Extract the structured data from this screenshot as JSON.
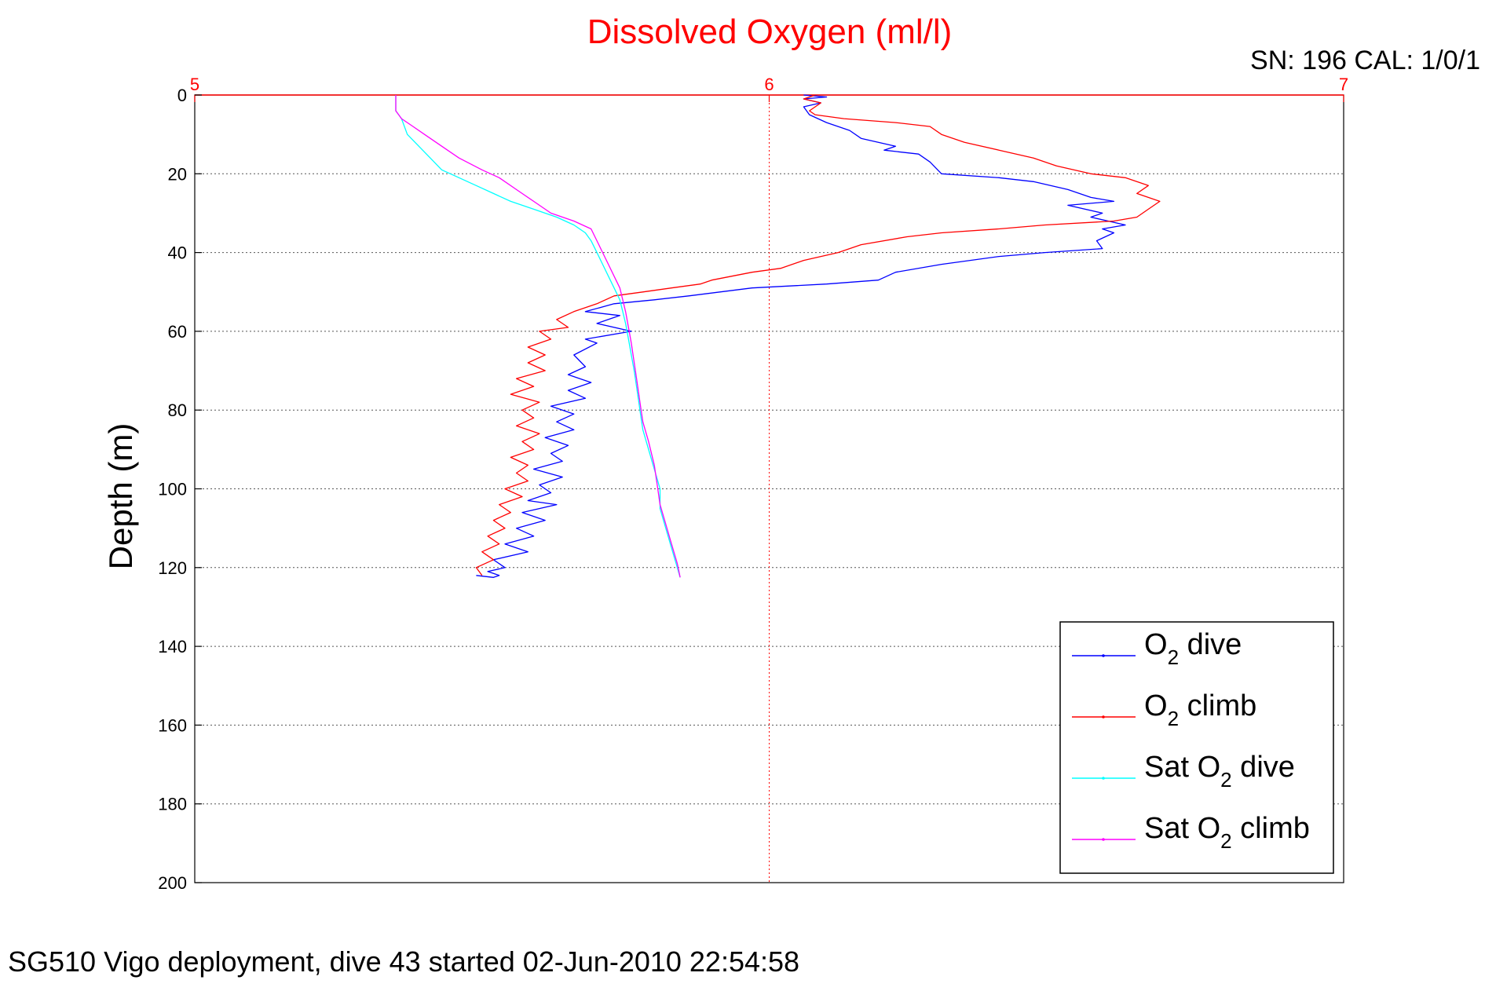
{
  "chart_data": {
    "type": "line",
    "title": "Dissolved Oxygen (ml/l)",
    "subtitle": "SN: 196  CAL: 1/0/1",
    "footer": "SG510 Vigo deployment, dive 43 started 02-Jun-2010 22:54:58",
    "xlabel": "",
    "ylabel": "Depth (m)",
    "xlim": [
      5,
      7
    ],
    "ylim": [
      0,
      200
    ],
    "y_reversed": true,
    "x_axis_position": "top",
    "x_ticks": [
      "5",
      "6",
      "7"
    ],
    "y_ticks": [
      "0",
      "20",
      "40",
      "60",
      "80",
      "100",
      "120",
      "140",
      "160",
      "180",
      "200"
    ],
    "grid": "dotted, both axes",
    "legend_position": "bottom-right",
    "colors": {
      "title": "#ff0000",
      "x_axis": "#ff0000",
      "y_axis": "#000000"
    },
    "series": [
      {
        "name": "O2 dive",
        "legend_main": "O",
        "legend_sub": "2",
        "legend_rest": " dive",
        "color": "#0000ff",
        "points": [
          [
            6.06,
            0
          ],
          [
            6.1,
            0.5
          ],
          [
            6.06,
            1
          ],
          [
            6.09,
            2
          ],
          [
            6.06,
            3
          ],
          [
            6.07,
            5
          ],
          [
            6.1,
            7
          ],
          [
            6.14,
            9
          ],
          [
            6.16,
            11
          ],
          [
            6.22,
            13
          ],
          [
            6.2,
            14
          ],
          [
            6.26,
            15
          ],
          [
            6.28,
            17
          ],
          [
            6.3,
            20
          ],
          [
            6.4,
            21
          ],
          [
            6.46,
            22
          ],
          [
            6.52,
            24
          ],
          [
            6.56,
            26
          ],
          [
            6.6,
            27
          ],
          [
            6.52,
            28
          ],
          [
            6.58,
            30
          ],
          [
            6.56,
            31
          ],
          [
            6.62,
            33
          ],
          [
            6.58,
            34
          ],
          [
            6.6,
            35
          ],
          [
            6.57,
            37
          ],
          [
            6.58,
            39
          ],
          [
            6.48,
            40
          ],
          [
            6.4,
            41
          ],
          [
            6.3,
            43
          ],
          [
            6.22,
            45
          ],
          [
            6.19,
            47
          ],
          [
            6.1,
            48
          ],
          [
            5.97,
            49
          ],
          [
            5.86,
            51
          ],
          [
            5.8,
            52
          ],
          [
            5.73,
            53
          ],
          [
            5.68,
            55
          ],
          [
            5.74,
            56
          ],
          [
            5.7,
            58
          ],
          [
            5.76,
            60
          ],
          [
            5.68,
            62
          ],
          [
            5.7,
            63
          ],
          [
            5.66,
            66
          ],
          [
            5.68,
            69
          ],
          [
            5.65,
            71
          ],
          [
            5.69,
            73
          ],
          [
            5.65,
            75
          ],
          [
            5.68,
            77
          ],
          [
            5.62,
            79
          ],
          [
            5.66,
            81
          ],
          [
            5.63,
            83
          ],
          [
            5.66,
            85
          ],
          [
            5.61,
            87
          ],
          [
            5.65,
            89
          ],
          [
            5.62,
            91
          ],
          [
            5.64,
            93
          ],
          [
            5.59,
            95
          ],
          [
            5.64,
            97
          ],
          [
            5.6,
            99
          ],
          [
            5.62,
            101
          ],
          [
            5.58,
            103
          ],
          [
            5.63,
            104
          ],
          [
            5.57,
            106
          ],
          [
            5.61,
            108
          ],
          [
            5.56,
            110
          ],
          [
            5.59,
            112
          ],
          [
            5.54,
            114
          ],
          [
            5.58,
            116
          ],
          [
            5.52,
            118
          ],
          [
            5.54,
            120
          ],
          [
            5.51,
            121
          ],
          [
            5.53,
            122
          ],
          [
            5.52,
            122.5
          ],
          [
            5.49,
            122
          ]
        ]
      },
      {
        "name": "O2 climb",
        "legend_main": "O",
        "legend_sub": "2",
        "legend_rest": " climb",
        "color": "#ff0000",
        "points": [
          [
            6.08,
            0
          ],
          [
            6.06,
            1
          ],
          [
            6.09,
            2
          ],
          [
            6.07,
            4
          ],
          [
            6.08,
            5
          ],
          [
            6.13,
            6
          ],
          [
            6.22,
            7
          ],
          [
            6.28,
            8
          ],
          [
            6.3,
            10
          ],
          [
            6.34,
            12
          ],
          [
            6.4,
            14
          ],
          [
            6.46,
            16
          ],
          [
            6.5,
            18
          ],
          [
            6.56,
            20
          ],
          [
            6.62,
            21
          ],
          [
            6.66,
            23
          ],
          [
            6.64,
            25
          ],
          [
            6.68,
            27
          ],
          [
            6.66,
            29
          ],
          [
            6.64,
            31
          ],
          [
            6.6,
            32
          ],
          [
            6.48,
            33
          ],
          [
            6.4,
            34
          ],
          [
            6.3,
            35
          ],
          [
            6.24,
            36
          ],
          [
            6.16,
            38
          ],
          [
            6.12,
            40
          ],
          [
            6.06,
            42
          ],
          [
            6.02,
            44
          ],
          [
            5.97,
            45
          ],
          [
            5.9,
            47
          ],
          [
            5.88,
            48
          ],
          [
            5.83,
            49
          ],
          [
            5.78,
            50
          ],
          [
            5.73,
            51
          ],
          [
            5.7,
            53
          ],
          [
            5.66,
            55
          ],
          [
            5.63,
            57
          ],
          [
            5.65,
            59
          ],
          [
            5.6,
            60
          ],
          [
            5.62,
            62
          ],
          [
            5.58,
            64
          ],
          [
            5.61,
            66
          ],
          [
            5.58,
            68
          ],
          [
            5.61,
            70
          ],
          [
            5.56,
            72
          ],
          [
            5.59,
            74
          ],
          [
            5.55,
            76
          ],
          [
            5.6,
            78
          ],
          [
            5.57,
            80
          ],
          [
            5.59,
            82
          ],
          [
            5.56,
            84
          ],
          [
            5.6,
            86
          ],
          [
            5.57,
            88
          ],
          [
            5.59,
            90
          ],
          [
            5.55,
            92
          ],
          [
            5.58,
            94
          ],
          [
            5.56,
            96
          ],
          [
            5.58,
            98
          ],
          [
            5.54,
            100
          ],
          [
            5.57,
            102
          ],
          [
            5.53,
            104
          ],
          [
            5.55,
            106
          ],
          [
            5.52,
            108
          ],
          [
            5.54,
            110
          ],
          [
            5.51,
            112
          ],
          [
            5.53,
            114
          ],
          [
            5.5,
            116
          ],
          [
            5.52,
            118
          ],
          [
            5.49,
            120
          ],
          [
            5.5,
            122
          ]
        ]
      },
      {
        "name": "Sat O2 dive",
        "legend_main": "Sat O",
        "legend_sub": "2",
        "legend_rest": " dive",
        "color": "#00ffff",
        "points": [
          [
            5.35,
            0
          ],
          [
            5.35,
            4
          ],
          [
            5.36,
            6
          ],
          [
            5.37,
            10
          ],
          [
            5.39,
            13
          ],
          [
            5.41,
            16
          ],
          [
            5.43,
            19
          ],
          [
            5.46,
            21
          ],
          [
            5.49,
            23
          ],
          [
            5.52,
            25
          ],
          [
            5.55,
            27
          ],
          [
            5.59,
            29
          ],
          [
            5.63,
            31
          ],
          [
            5.66,
            33
          ],
          [
            5.68,
            35
          ],
          [
            5.69,
            37
          ],
          [
            5.7,
            40
          ],
          [
            5.71,
            43
          ],
          [
            5.72,
            46
          ],
          [
            5.73,
            49
          ],
          [
            5.74,
            52
          ],
          [
            5.745,
            55
          ],
          [
            5.75,
            58
          ],
          [
            5.755,
            62
          ],
          [
            5.76,
            66
          ],
          [
            5.765,
            70
          ],
          [
            5.77,
            75
          ],
          [
            5.775,
            80
          ],
          [
            5.78,
            85
          ],
          [
            5.79,
            90
          ],
          [
            5.8,
            95
          ],
          [
            5.81,
            100
          ],
          [
            5.81,
            105
          ],
          [
            5.82,
            110
          ],
          [
            5.83,
            115
          ],
          [
            5.84,
            120
          ],
          [
            5.845,
            122.5
          ]
        ]
      },
      {
        "name": "Sat O2 climb",
        "legend_main": "Sat O",
        "legend_sub": "2",
        "legend_rest": " climb",
        "color": "#ff00ff",
        "points": [
          [
            5.35,
            0
          ],
          [
            5.35,
            4
          ],
          [
            5.36,
            6
          ],
          [
            5.38,
            8
          ],
          [
            5.4,
            10
          ],
          [
            5.43,
            13
          ],
          [
            5.46,
            16
          ],
          [
            5.5,
            19
          ],
          [
            5.53,
            21
          ],
          [
            5.56,
            24
          ],
          [
            5.59,
            27
          ],
          [
            5.62,
            30
          ],
          [
            5.66,
            32
          ],
          [
            5.69,
            34
          ],
          [
            5.7,
            37
          ],
          [
            5.71,
            40
          ],
          [
            5.72,
            43
          ],
          [
            5.73,
            46
          ],
          [
            5.74,
            49
          ],
          [
            5.745,
            52
          ],
          [
            5.75,
            55
          ],
          [
            5.755,
            59
          ],
          [
            5.76,
            63
          ],
          [
            5.765,
            68
          ],
          [
            5.77,
            73
          ],
          [
            5.775,
            78
          ],
          [
            5.78,
            83
          ],
          [
            5.79,
            88
          ],
          [
            5.8,
            94
          ],
          [
            5.805,
            99
          ],
          [
            5.81,
            104
          ],
          [
            5.82,
            109
          ],
          [
            5.83,
            114
          ],
          [
            5.84,
            119
          ],
          [
            5.845,
            122.5
          ]
        ]
      }
    ]
  }
}
